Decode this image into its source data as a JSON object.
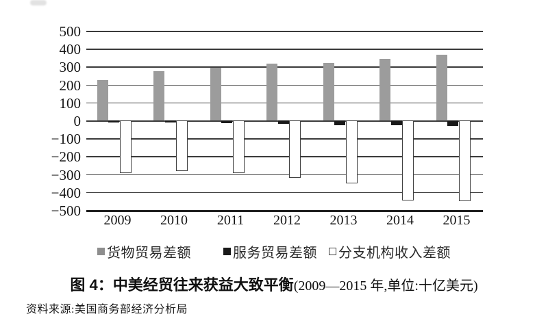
{
  "figure": {
    "caption_bold": "图 4：中美经贸往来获益大致平衡",
    "caption_paren": "(2009—2015 年,单位:十亿美元)",
    "source": "资料来源:美国商务部经济分析局"
  },
  "chart_data": {
    "type": "bar",
    "title": "中美经贸往来获益大致平衡",
    "unit": "十亿美元",
    "categories": [
      "2009",
      "2010",
      "2011",
      "2012",
      "2013",
      "2014",
      "2015"
    ],
    "series": [
      {
        "key": "goods-trade-balance",
        "name": "货物贸易差额",
        "color": "#9c9c9c",
        "values": [
          227,
          273,
          295,
          315,
          319,
          345,
          367
        ]
      },
      {
        "key": "services-trade-balance",
        "name": "服务贸易差额",
        "color": "#191919",
        "values": [
          -10,
          -13,
          -16,
          -20,
          -25,
          -28,
          -31
        ]
      },
      {
        "key": "branch-income-balance",
        "name": "分支机构收入差额",
        "color": "#ffffff",
        "values": [
          -295,
          -283,
          -293,
          -320,
          -350,
          -448,
          -452
        ]
      }
    ],
    "ylim": [
      -500,
      500
    ],
    "ytick_step": 100,
    "ytick_labels": [
      "500",
      "400",
      "300",
      "200",
      "100",
      "0",
      "−100",
      "−200",
      "−300",
      "−400",
      "−500"
    ],
    "grid": true,
    "legend_position": "bottom"
  }
}
